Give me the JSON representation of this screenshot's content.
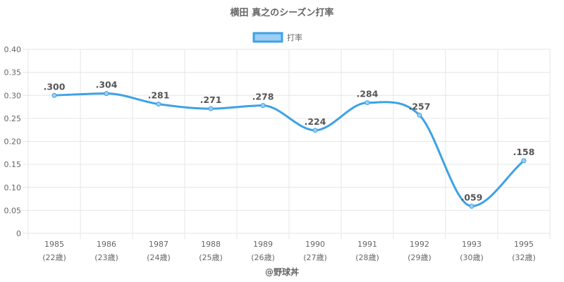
{
  "chart_data": {
    "type": "line",
    "title": "横田 真之のシーズン打率",
    "legend": {
      "position": "top",
      "label": "打率"
    },
    "categories": [
      "1985",
      "1986",
      "1987",
      "1988",
      "1989",
      "1990",
      "1991",
      "1992",
      "1993",
      "1995"
    ],
    "sub_labels": [
      "(22歳)",
      "(23歳)",
      "(24歳)",
      "(25歳)",
      "(26歳)",
      "(27歳)",
      "(28歳)",
      "(29歳)",
      "(30歳)",
      "(32歳)"
    ],
    "series": [
      {
        "name": "打率",
        "values": [
          0.3,
          0.304,
          0.281,
          0.271,
          0.278,
          0.224,
          0.284,
          0.257,
          0.059,
          0.158
        ],
        "labels": [
          ".300",
          ".304",
          ".281",
          ".271",
          ".278",
          ".224",
          ".284",
          ".257",
          ".059",
          ".158"
        ]
      }
    ],
    "ylim": [
      0,
      0.4
    ],
    "yticks": [
      "0",
      "0.05",
      "0.10",
      "0.15",
      "0.20",
      "0.25",
      "0.30",
      "0.35",
      "0.40"
    ],
    "grid": true,
    "colors": {
      "line": "#3ea2e5",
      "fill": "#9ccff2",
      "grid": "#e6e6e6",
      "text": "#666666"
    }
  },
  "credit": "@野球丼"
}
